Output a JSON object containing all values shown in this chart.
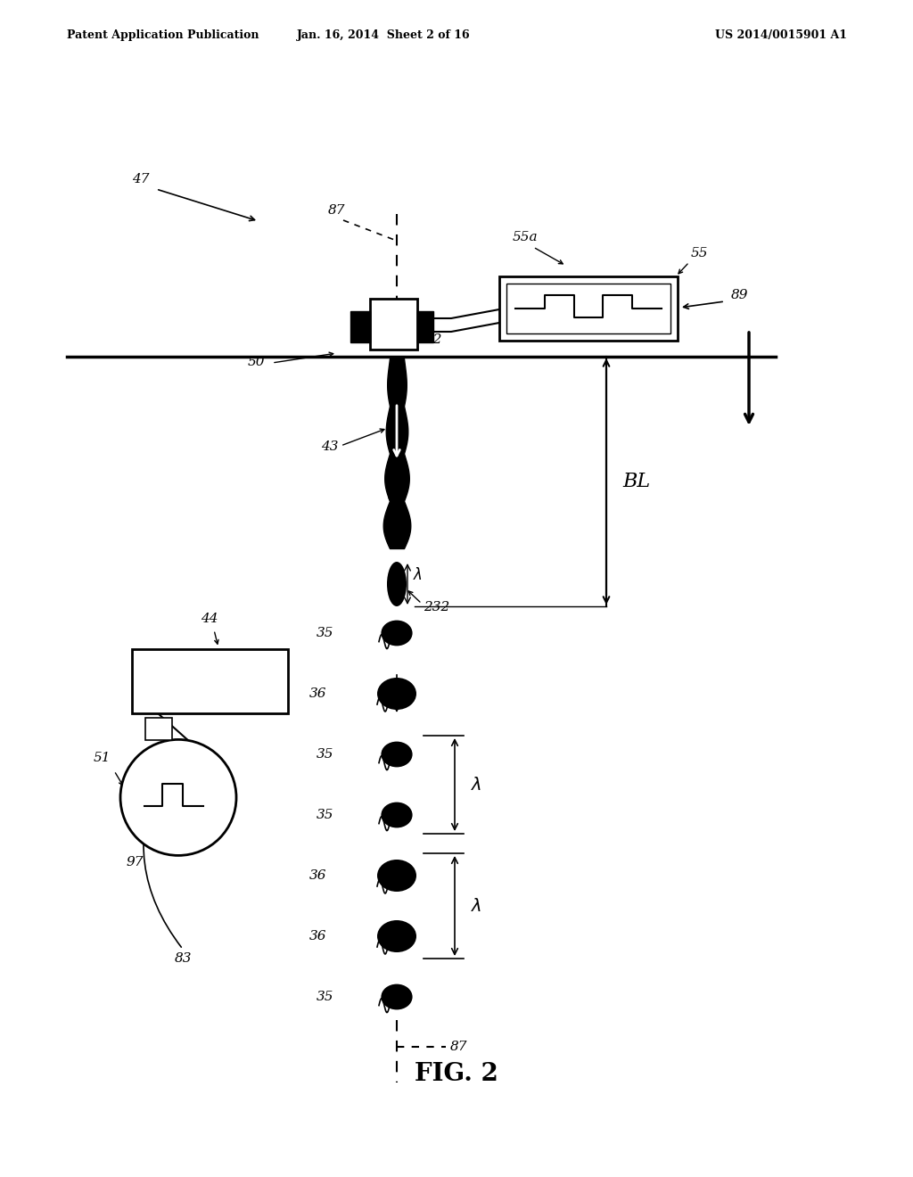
{
  "bg_color": "#ffffff",
  "header_left": "Patent Application Publication",
  "header_mid": "Jan. 16, 2014  Sheet 2 of 16",
  "header_right": "US 2014/0015901 A1",
  "fig_label": "FIG. 2"
}
